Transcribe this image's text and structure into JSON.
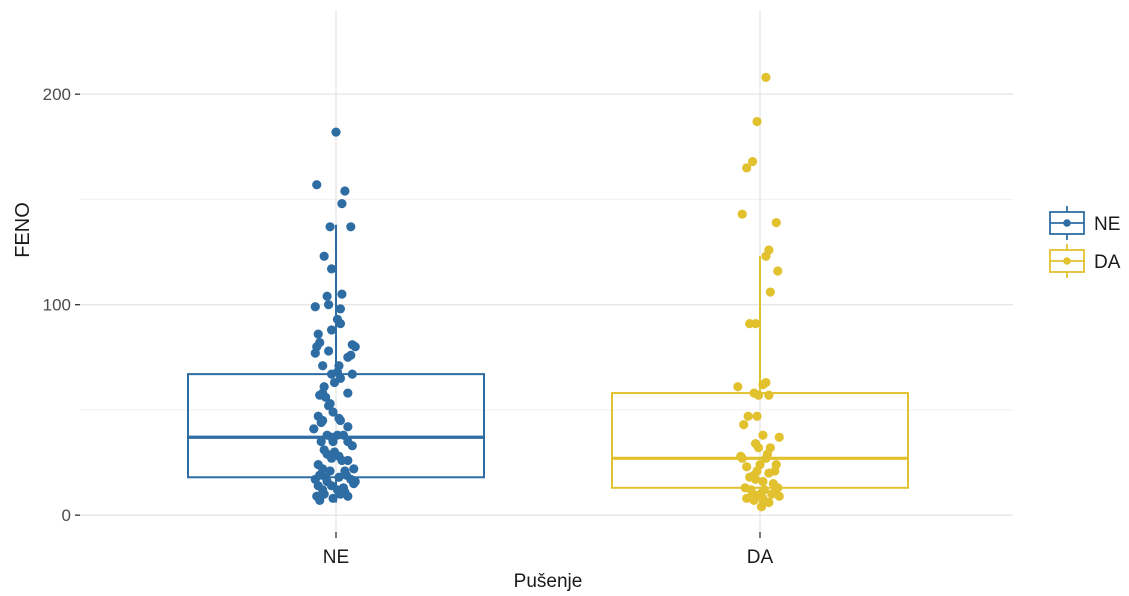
{
  "chart_data": {
    "type": "box+jitter",
    "title": "",
    "xlabel": "Pušenje",
    "ylabel": "FENO",
    "categories": [
      "NE",
      "DA"
    ],
    "ylim": [
      -8,
      240
    ],
    "yticks": [
      0,
      100,
      200
    ],
    "grid": true,
    "legend": {
      "position": "right",
      "entries": [
        {
          "label": "NE",
          "color": "#2E6DA4"
        },
        {
          "label": "DA",
          "color": "#E2C12F"
        }
      ]
    },
    "series": [
      {
        "name": "NE",
        "color": "#2E6DA4",
        "box": {
          "q1": 18,
          "median": 37,
          "q3": 67,
          "whisker_low": 6,
          "whisker_high": 138
        },
        "points": [
          [
            -0.13,
            157
          ],
          [
            0,
            182
          ],
          [
            0.06,
            154
          ],
          [
            0.04,
            148
          ],
          [
            0.1,
            137
          ],
          [
            -0.04,
            137
          ],
          [
            -0.08,
            123
          ],
          [
            -0.03,
            117
          ],
          [
            0.04,
            105
          ],
          [
            -0.06,
            104
          ],
          [
            -0.14,
            99
          ],
          [
            -0.05,
            100
          ],
          [
            0.03,
            98
          ],
          [
            0.01,
            93
          ],
          [
            0.03,
            91
          ],
          [
            -0.03,
            88
          ],
          [
            -0.12,
            86
          ],
          [
            -0.11,
            82
          ],
          [
            -0.05,
            78
          ],
          [
            -0.13,
            80
          ],
          [
            -0.14,
            77
          ],
          [
            0.11,
            81
          ],
          [
            0.13,
            80
          ],
          [
            0.08,
            75
          ],
          [
            0.1,
            76
          ],
          [
            0.02,
            71
          ],
          [
            -0.09,
            71
          ],
          [
            0.01,
            68
          ],
          [
            -0.03,
            67
          ],
          [
            0.11,
            67
          ],
          [
            0.03,
            65
          ],
          [
            -0.01,
            63
          ],
          [
            -0.08,
            61
          ],
          [
            -0.09,
            58
          ],
          [
            0.08,
            58
          ],
          [
            -0.07,
            56
          ],
          [
            -0.11,
            57
          ],
          [
            -0.04,
            53
          ],
          [
            -0.05,
            52
          ],
          [
            -0.02,
            49
          ],
          [
            -0.12,
            47
          ],
          [
            -0.09,
            45
          ],
          [
            0.03,
            45
          ],
          [
            -0.1,
            44
          ],
          [
            0.02,
            46
          ],
          [
            0.08,
            42
          ],
          [
            -0.15,
            41
          ],
          [
            -0.06,
            38
          ],
          [
            0.01,
            38
          ],
          [
            0.05,
            38
          ],
          [
            -0.03,
            37
          ],
          [
            -0.1,
            35
          ],
          [
            -0.02,
            35
          ],
          [
            0.08,
            35
          ],
          [
            0.11,
            33
          ],
          [
            -0.08,
            31
          ],
          [
            -0.06,
            29
          ],
          [
            -0.03,
            27
          ],
          [
            -0.01,
            30
          ],
          [
            0.02,
            28
          ],
          [
            0.04,
            26
          ],
          [
            0.08,
            26
          ],
          [
            -0.12,
            24
          ],
          [
            -0.09,
            22
          ],
          [
            -0.04,
            21
          ],
          [
            0.06,
            21
          ],
          [
            0.12,
            22
          ],
          [
            -0.11,
            19
          ],
          [
            -0.07,
            18
          ],
          [
            0.02,
            18
          ],
          [
            0.07,
            19
          ],
          [
            -0.14,
            17
          ],
          [
            -0.06,
            16
          ],
          [
            0.1,
            17
          ],
          [
            0.13,
            16
          ],
          [
            -0.12,
            14
          ],
          [
            -0.03,
            14
          ],
          [
            0.05,
            13
          ],
          [
            0.12,
            15
          ],
          [
            -0.09,
            12
          ],
          [
            0.01,
            12
          ],
          [
            0.06,
            11
          ],
          [
            -0.13,
            9
          ],
          [
            -0.08,
            10
          ],
          [
            0.03,
            10
          ],
          [
            0.08,
            9
          ],
          [
            -0.02,
            8
          ],
          [
            -0.11,
            7
          ]
        ]
      },
      {
        "name": "DA",
        "color": "#E2C12F",
        "box": {
          "q1": 13,
          "median": 27,
          "q3": 58,
          "whisker_low": 5,
          "whisker_high": 123
        },
        "points": [
          [
            0.04,
            208
          ],
          [
            -0.02,
            187
          ],
          [
            -0.05,
            168
          ],
          [
            -0.09,
            165
          ],
          [
            -0.12,
            143
          ],
          [
            0.11,
            139
          ],
          [
            0.06,
            126
          ],
          [
            0.04,
            123
          ],
          [
            0.12,
            116
          ],
          [
            0.07,
            106
          ],
          [
            -0.07,
            91
          ],
          [
            -0.03,
            91
          ],
          [
            0.04,
            63
          ],
          [
            -0.15,
            61
          ],
          [
            0.02,
            62
          ],
          [
            -0.04,
            58
          ],
          [
            -0.01,
            57
          ],
          [
            0.06,
            57
          ],
          [
            -0.08,
            47
          ],
          [
            -0.02,
            47
          ],
          [
            -0.11,
            43
          ],
          [
            0.02,
            38
          ],
          [
            -0.03,
            34
          ],
          [
            0.13,
            37
          ],
          [
            -0.01,
            32
          ],
          [
            0.07,
            32
          ],
          [
            0.05,
            29
          ],
          [
            -0.13,
            28
          ],
          [
            -0.12,
            27
          ],
          [
            0.04,
            27
          ],
          [
            -0.09,
            23
          ],
          [
            0.0,
            24
          ],
          [
            -0.02,
            21
          ],
          [
            0.11,
            24
          ],
          [
            -0.04,
            19
          ],
          [
            -0.07,
            18
          ],
          [
            0.06,
            20
          ],
          [
            0.1,
            21
          ],
          [
            -0.03,
            17
          ],
          [
            0.02,
            16
          ],
          [
            0.09,
            15
          ],
          [
            -0.1,
            13
          ],
          [
            -0.06,
            12
          ],
          [
            0.03,
            12
          ],
          [
            0.12,
            13
          ],
          [
            0.1,
            11
          ],
          [
            -0.05,
            10
          ],
          [
            0.0,
            10
          ],
          [
            0.08,
            10
          ],
          [
            0.13,
            9
          ],
          [
            -0.09,
            8
          ],
          [
            -0.04,
            7
          ],
          [
            0.02,
            8
          ],
          [
            0.06,
            6
          ],
          [
            0.01,
            4
          ]
        ]
      }
    ]
  }
}
